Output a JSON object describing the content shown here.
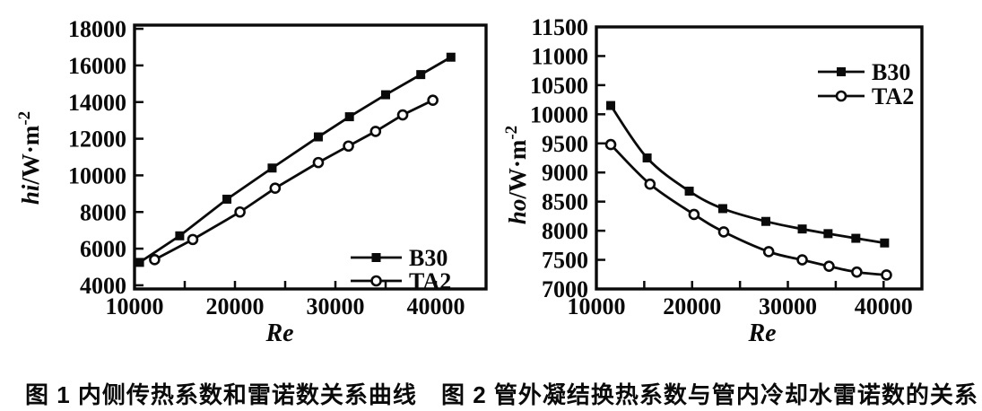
{
  "figure": {
    "background": "#ffffff",
    "ink_color": "#0a0a0a"
  },
  "captions": [
    "图 1  内侧传热系数和雷诺数关系曲线",
    "图 2  管外凝结换热系数与管内冷却水雷诺数的关系"
  ],
  "chart_data": [
    {
      "type": "line",
      "title": "图 1 内侧传热系数和雷诺数关系曲线",
      "xlabel": "Re",
      "ylabel": "hi/W·m⁻²",
      "ylabel_parts": {
        "var": "hi",
        "unit": "/W·m",
        "sup": "-2"
      },
      "xlim": [
        10000,
        45000
      ],
      "ylim": [
        3800,
        18200
      ],
      "xticks": [
        10000,
        20000,
        30000,
        40000
      ],
      "xminor_step": 5000,
      "yticks": [
        4000,
        6000,
        8000,
        10000,
        12000,
        14000,
        16000,
        18000
      ],
      "grid": false,
      "smooth": false,
      "legend_position": "bottom-right",
      "series": [
        {
          "name": "B30",
          "marker": "filled-square",
          "x": [
            10500,
            14500,
            19200,
            23700,
            28300,
            31400,
            35000,
            38500,
            41500
          ],
          "y": [
            5250,
            6700,
            8700,
            10400,
            12100,
            13200,
            14400,
            15500,
            16450
          ]
        },
        {
          "name": "TA2",
          "marker": "open-circle",
          "x": [
            12000,
            15800,
            20500,
            24000,
            28300,
            31300,
            34000,
            36700,
            39700
          ],
          "y": [
            5400,
            6500,
            8000,
            9300,
            10700,
            11600,
            12400,
            13300,
            14100
          ]
        }
      ]
    },
    {
      "type": "line",
      "title": "图 2 管外凝结换热系数与管内冷却水雷诺数的关系",
      "xlabel": "Re",
      "ylabel": "ho/W·m⁻²",
      "ylabel_parts": {
        "var": "ho",
        "unit": "/W·m",
        "sup": "-2"
      },
      "xlim": [
        10000,
        44000
      ],
      "ylim": [
        7000,
        11500
      ],
      "xticks": [
        10000,
        20000,
        30000,
        40000
      ],
      "xminor_step": 5000,
      "yticks": [
        7000,
        7500,
        8000,
        8500,
        9000,
        9500,
        10000,
        10500,
        11000,
        11500
      ],
      "grid": false,
      "smooth": true,
      "legend_position": "top-right",
      "series": [
        {
          "name": "B30",
          "marker": "filled-square",
          "x": [
            11500,
            15300,
            19700,
            23200,
            27700,
            31500,
            34200,
            37100,
            40100
          ],
          "y": [
            10150,
            9250,
            8680,
            8380,
            8160,
            8030,
            7950,
            7870,
            7790
          ]
        },
        {
          "name": "TA2",
          "marker": "open-circle",
          "x": [
            11500,
            15600,
            20200,
            23300,
            28000,
            31500,
            34300,
            37200,
            40300
          ],
          "y": [
            9480,
            8800,
            8280,
            7980,
            7640,
            7500,
            7390,
            7290,
            7240
          ]
        }
      ]
    }
  ]
}
